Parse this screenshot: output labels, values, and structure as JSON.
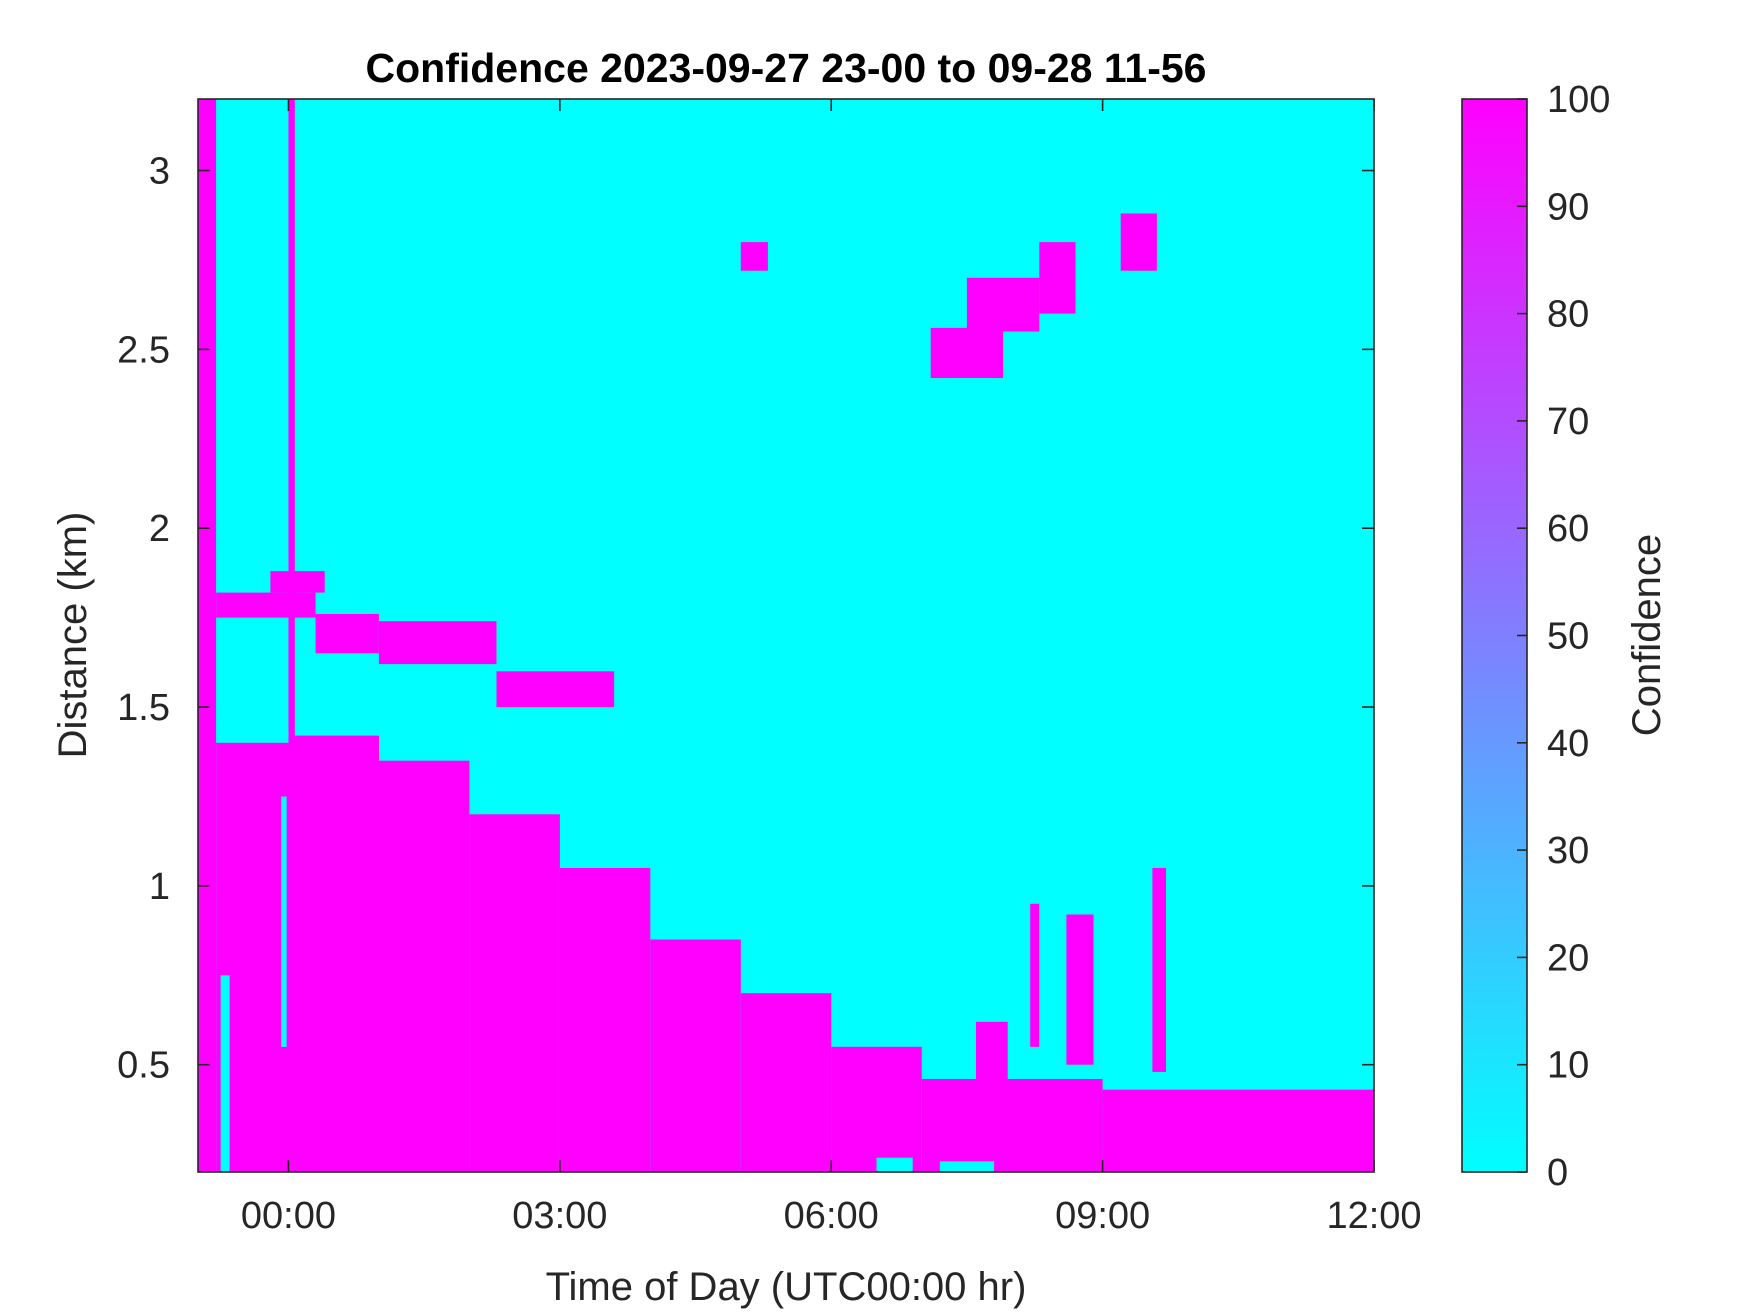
{
  "chart_data": {
    "type": "heatmap",
    "title": "Confidence 2023-09-27 23-00 to 09-28 11-56",
    "xlabel": "Time of Day (UTC00:00 hr)",
    "ylabel": "Distance (km)",
    "xlim": [
      -1.0,
      12.0
    ],
    "ylim": [
      0.2,
      3.2
    ],
    "x_ticks": [
      {
        "value": 0,
        "label": "00:00"
      },
      {
        "value": 3,
        "label": "03:00"
      },
      {
        "value": 6,
        "label": "06:00"
      },
      {
        "value": 9,
        "label": "09:00"
      },
      {
        "value": 12,
        "label": "12:00"
      }
    ],
    "y_ticks": [
      {
        "value": 0.5,
        "label": "0.5"
      },
      {
        "value": 1.0,
        "label": "1"
      },
      {
        "value": 1.5,
        "label": "1.5"
      },
      {
        "value": 2.0,
        "label": "2"
      },
      {
        "value": 2.5,
        "label": "2.5"
      },
      {
        "value": 3.0,
        "label": "3"
      }
    ],
    "colorbar": {
      "label": "Confidence",
      "range": [
        0,
        100
      ],
      "low_color": "#00ffff",
      "high_color": "#ff00ff",
      "ticks": [
        {
          "value": 0,
          "label": "0"
        },
        {
          "value": 10,
          "label": "10"
        },
        {
          "value": 20,
          "label": "20"
        },
        {
          "value": 30,
          "label": "30"
        },
        {
          "value": 40,
          "label": "40"
        },
        {
          "value": 50,
          "label": "50"
        },
        {
          "value": 60,
          "label": "60"
        },
        {
          "value": 70,
          "label": "70"
        },
        {
          "value": 80,
          "label": "80"
        },
        {
          "value": 90,
          "label": "90"
        },
        {
          "value": 100,
          "label": "100"
        }
      ]
    },
    "background_value": 0,
    "high_confidence_regions": [
      {
        "x": [
          -1.0,
          -0.8
        ],
        "y": [
          0.2,
          3.2
        ],
        "value": 100
      },
      {
        "x": [
          -0.8,
          0.0
        ],
        "y": [
          0.2,
          1.4
        ],
        "value": 100
      },
      {
        "x": [
          -0.8,
          0.3
        ],
        "y": [
          1.75,
          1.82
        ],
        "value": 100
      },
      {
        "x": [
          -0.2,
          0.4
        ],
        "y": [
          1.82,
          1.88
        ],
        "value": 100
      },
      {
        "x": [
          0.0,
          1.0
        ],
        "y": [
          0.2,
          1.42
        ],
        "value": 100
      },
      {
        "x": [
          1.0,
          2.0
        ],
        "y": [
          0.2,
          1.35
        ],
        "value": 100
      },
      {
        "x": [
          2.0,
          3.0
        ],
        "y": [
          0.2,
          1.2
        ],
        "value": 100
      },
      {
        "x": [
          3.0,
          4.0
        ],
        "y": [
          0.2,
          1.05
        ],
        "value": 100
      },
      {
        "x": [
          4.0,
          5.0
        ],
        "y": [
          0.2,
          0.85
        ],
        "value": 100
      },
      {
        "x": [
          5.0,
          6.0
        ],
        "y": [
          0.2,
          0.7
        ],
        "value": 100
      },
      {
        "x": [
          6.0,
          7.0
        ],
        "y": [
          0.2,
          0.55
        ],
        "value": 100
      },
      {
        "x": [
          7.0,
          9.0
        ],
        "y": [
          0.2,
          0.46
        ],
        "value": 100
      },
      {
        "x": [
          9.0,
          12.0
        ],
        "y": [
          0.2,
          0.43
        ],
        "value": 100
      },
      {
        "x": [
          0.3,
          1.0
        ],
        "y": [
          1.65,
          1.76
        ],
        "value": 100
      },
      {
        "x": [
          1.0,
          2.3
        ],
        "y": [
          1.62,
          1.74
        ],
        "value": 100
      },
      {
        "x": [
          2.3,
          3.6
        ],
        "y": [
          1.5,
          1.6
        ],
        "value": 100
      },
      {
        "x": [
          7.1,
          7.9
        ],
        "y": [
          2.42,
          2.56
        ],
        "value": 100
      },
      {
        "x": [
          7.5,
          8.3
        ],
        "y": [
          2.55,
          2.7
        ],
        "value": 100
      },
      {
        "x": [
          8.3,
          8.7
        ],
        "y": [
          2.6,
          2.8
        ],
        "value": 100
      },
      {
        "x": [
          9.2,
          9.6
        ],
        "y": [
          2.72,
          2.88
        ],
        "value": 100
      },
      {
        "x": [
          5.0,
          5.3
        ],
        "y": [
          2.72,
          2.8
        ],
        "value": 100
      },
      {
        "x": [
          7.6,
          7.95
        ],
        "y": [
          0.46,
          0.62
        ],
        "value": 100
      },
      {
        "x": [
          8.2,
          8.3
        ],
        "y": [
          0.55,
          0.95
        ],
        "value": 100
      },
      {
        "x": [
          8.6,
          8.9
        ],
        "y": [
          0.5,
          0.92
        ],
        "value": 100
      },
      {
        "x": [
          9.55,
          9.7
        ],
        "y": [
          0.48,
          1.05
        ],
        "value": 100
      },
      {
        "x": [
          0.0,
          0.07
        ],
        "y": [
          1.4,
          3.2
        ],
        "value": 100
      },
      {
        "x": [
          -0.75,
          -0.65
        ],
        "y": [
          0.2,
          0.75
        ],
        "value": 0
      },
      {
        "x": [
          -0.08,
          -0.02
        ],
        "y": [
          0.55,
          1.25
        ],
        "value": 0
      },
      {
        "x": [
          6.5,
          6.9
        ],
        "y": [
          0.2,
          0.24
        ],
        "value": 0
      },
      {
        "x": [
          7.2,
          7.8
        ],
        "y": [
          0.2,
          0.23
        ],
        "value": 0
      }
    ]
  }
}
